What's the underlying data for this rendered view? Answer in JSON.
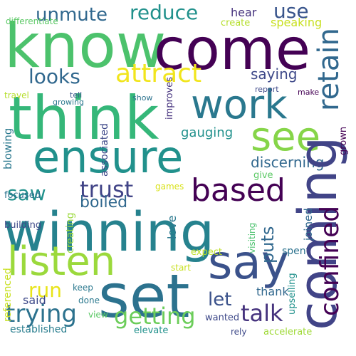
{
  "words": {
    "know": {
      "text": "know",
      "color": "#4cc26c"
    },
    "come": {
      "text": "come",
      "color": "#440154"
    },
    "think": {
      "text": "think",
      "color": "#35b779"
    },
    "ensure": {
      "text": "ensure",
      "color": "#21918c"
    },
    "winning": {
      "text": "winning",
      "color": "#26828e"
    },
    "set": {
      "text": "set",
      "color": "#2c728e"
    },
    "say": {
      "text": "say",
      "color": "#3b528b"
    },
    "coming": {
      "text": "coming",
      "color": "#414487"
    },
    "listen": {
      "text": "listen",
      "color": "#9bd93c"
    },
    "work": {
      "text": "work",
      "color": "#2a788e"
    },
    "see": {
      "text": "see",
      "color": "#86d549"
    },
    "attract": {
      "text": "attract",
      "color": "#f1e51d"
    },
    "based": {
      "text": "based",
      "color": "#440154"
    },
    "retain": {
      "text": "retain",
      "color": "#31688e"
    },
    "looks": {
      "text": "looks",
      "color": "#31688e"
    },
    "reduce": {
      "text": "reduce",
      "color": "#21918c"
    },
    "unmute": {
      "text": "unmute",
      "color": "#31688e"
    },
    "use": {
      "text": "use",
      "color": "#39558c"
    },
    "trust": {
      "text": "trust",
      "color": "#414487"
    },
    "run": {
      "text": "run",
      "color": "#e8e419"
    },
    "trying": {
      "text": "trying",
      "color": "#2c728e"
    },
    "getting": {
      "text": "getting",
      "color": "#6ccd5a"
    },
    "talk": {
      "text": "talk",
      "color": "#46337e"
    },
    "confined": {
      "text": "confined",
      "color": "#440154"
    },
    "let": {
      "text": "let",
      "color": "#3b528b"
    },
    "saw": {
      "text": "saw",
      "color": "#21918c"
    },
    "boiled": {
      "text": "boiled",
      "color": "#31688e"
    },
    "saying": {
      "text": "saying",
      "color": "#3e4989"
    },
    "gauging": {
      "text": "gauging",
      "color": "#21918c"
    },
    "discerning": {
      "text": "discerning",
      "color": "#31688e"
    },
    "puts": {
      "text": "puts",
      "color": "#31688e"
    },
    "said": {
      "text": "said",
      "color": "#3e4989"
    },
    "thank": {
      "text": "thank",
      "color": "#31688e"
    },
    "hear": {
      "text": "hear",
      "color": "#46337e"
    },
    "speaking": {
      "text": "speaking",
      "color": "#c8e020"
    },
    "create": {
      "text": "create",
      "color": "#b5de2b"
    },
    "differentiate": {
      "text": "differentiate",
      "color": "#5ac864"
    },
    "love": {
      "text": "love",
      "color": "#2a788e"
    },
    "spent": {
      "text": "spent",
      "color": "#2c728e"
    },
    "joined": {
      "text": "joined",
      "color": "#31688e"
    },
    "give": {
      "text": "give",
      "color": "#5ac864"
    },
    "grown": {
      "text": "grown",
      "color": "#440154"
    },
    "blowing": {
      "text": "blowing",
      "color": "#2a788e"
    },
    "focused": {
      "text": "focused",
      "color": "#2c728e"
    },
    "building": {
      "text": "building",
      "color": "#3e4989"
    },
    "creating": {
      "text": "creating",
      "color": "#9bd93c"
    },
    "games": {
      "text": "games",
      "color": "#d8e219"
    },
    "expect": {
      "text": "expect",
      "color": "#bddf26"
    },
    "start": {
      "text": "start",
      "color": "#c8e020"
    },
    "visiting": {
      "text": "visiting",
      "color": "#4ac16d"
    },
    "wanted": {
      "text": "wanted",
      "color": "#3e4989"
    },
    "view": {
      "text": "view",
      "color": "#5ac864"
    },
    "keep": {
      "text": "keep",
      "color": "#2a788e"
    },
    "done": {
      "text": "done",
      "color": "#2a788e"
    },
    "upselling": {
      "text": "upselling",
      "color": "#21918c"
    },
    "referenced": {
      "text": "referenced",
      "color": "#c8e020"
    },
    "established": {
      "text": "established",
      "color": "#287d8e"
    },
    "elevate": {
      "text": "elevate",
      "color": "#21918c"
    },
    "rely": {
      "text": "rely",
      "color": "#3e4989"
    },
    "accelerate": {
      "text": "accelerate",
      "color": "#a0da39"
    },
    "travel": {
      "text": "travel",
      "color": "#b5de2b"
    },
    "tell": {
      "text": "tell",
      "color": "#39568c"
    },
    "show": {
      "text": "show",
      "color": "#2c728e"
    },
    "report": {
      "text": "report",
      "color": "#3e4989"
    },
    "make": {
      "text": "make",
      "color": "#440154"
    },
    "growing": {
      "text": "growing",
      "color": "#2a788e"
    },
    "associated": {
      "text": "associated",
      "color": "#3e4989"
    },
    "improves": {
      "text": "improves",
      "color": "#46337e"
    }
  }
}
